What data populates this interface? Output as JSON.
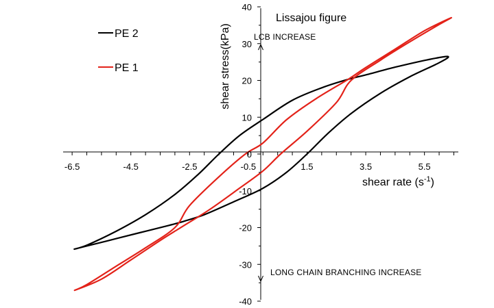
{
  "chart_data": {
    "type": "line",
    "title": "Lissajou figure",
    "xlabel": "shear rate (s",
    "xlabel_sup": "-1",
    "xlabel_end": ")",
    "ylabel": "shear stress(kPa)",
    "xlim": [
      -6.9,
      6.7
    ],
    "ylim": [
      -40,
      40
    ],
    "x_ticks": [
      -6.5,
      -4.5,
      -2.5,
      -0.5,
      1.5,
      3.5,
      5.5
    ],
    "x_tick_labels": [
      "-6.5",
      "-4.5",
      "-2.5",
      "-0.5",
      "1.5",
      "3.5",
      "5.5"
    ],
    "y_ticks": [
      -40,
      -30,
      -20,
      -10,
      0,
      10,
      20,
      30,
      40
    ],
    "y_tick_labels": [
      "-40",
      "-30",
      "-20",
      "-10",
      "0",
      "10",
      "20",
      "30",
      "40"
    ],
    "grid": false,
    "legend_position": "top-left",
    "annotations": {
      "up": "LCB INCREASE",
      "down": "LONG CHAIN BRANCHING INCREASE"
    },
    "series": [
      {
        "name": "PE 2",
        "color": "#000000",
        "upper": [
          [
            -6.4,
            -25.8
          ],
          [
            -5.3,
            -23.6
          ],
          [
            -4.2,
            -21.4
          ],
          [
            -3.2,
            -19.4
          ],
          [
            -2.7,
            -18.3
          ],
          [
            -2.0,
            -16.5
          ],
          [
            -1.0,
            -13.0
          ],
          [
            0.0,
            -9.3
          ],
          [
            0.8,
            -5.0
          ],
          [
            1.5,
            0.0
          ],
          [
            2.2,
            5.5
          ],
          [
            3.0,
            11.0
          ],
          [
            4.0,
            16.5
          ],
          [
            5.0,
            21.0
          ],
          [
            6.0,
            24.8
          ],
          [
            6.3,
            26.5
          ]
        ],
        "lower": [
          [
            6.3,
            26.5
          ],
          [
            5.6,
            25.6
          ],
          [
            4.5,
            23.6
          ],
          [
            3.5,
            21.5
          ],
          [
            2.9,
            20.3
          ],
          [
            2.0,
            18.0
          ],
          [
            1.0,
            14.6
          ],
          [
            0.0,
            9.4
          ],
          [
            -0.8,
            5.0
          ],
          [
            -1.5,
            0.0
          ],
          [
            -2.2,
            -5.5
          ],
          [
            -3.0,
            -11.0
          ],
          [
            -4.0,
            -16.5
          ],
          [
            -5.0,
            -21.0
          ],
          [
            -6.0,
            -24.8
          ],
          [
            -6.4,
            -25.8
          ]
        ]
      },
      {
        "name": "PE 1",
        "color": "#e32219",
        "upper": [
          [
            -6.4,
            -37.0
          ],
          [
            -5.5,
            -34.0
          ],
          [
            -4.5,
            -28.8
          ],
          [
            -3.5,
            -23.5
          ],
          [
            -2.7,
            -19.5
          ],
          [
            -1.8,
            -15.0
          ],
          [
            -0.8,
            -9.3
          ],
          [
            0.0,
            -4.6
          ],
          [
            0.6,
            0.0
          ],
          [
            1.5,
            6.2
          ],
          [
            2.5,
            14.0
          ],
          [
            3.0,
            20.0
          ],
          [
            4.0,
            25.5
          ],
          [
            5.0,
            30.5
          ],
          [
            6.0,
            35.2
          ],
          [
            6.4,
            37.0
          ]
        ],
        "lower": [
          [
            6.4,
            37.0
          ],
          [
            5.5,
            33.5
          ],
          [
            4.5,
            28.5
          ],
          [
            3.5,
            23.5
          ],
          [
            2.9,
            20.3
          ],
          [
            1.8,
            15.0
          ],
          [
            0.8,
            9.3
          ],
          [
            0.0,
            3.0
          ],
          [
            -0.6,
            0.0
          ],
          [
            -1.5,
            -6.2
          ],
          [
            -2.5,
            -14.0
          ],
          [
            -3.0,
            -20.0
          ],
          [
            -4.0,
            -25.5
          ],
          [
            -5.0,
            -30.5
          ],
          [
            -6.0,
            -35.5
          ],
          [
            -6.4,
            -37.0
          ]
        ]
      }
    ]
  }
}
